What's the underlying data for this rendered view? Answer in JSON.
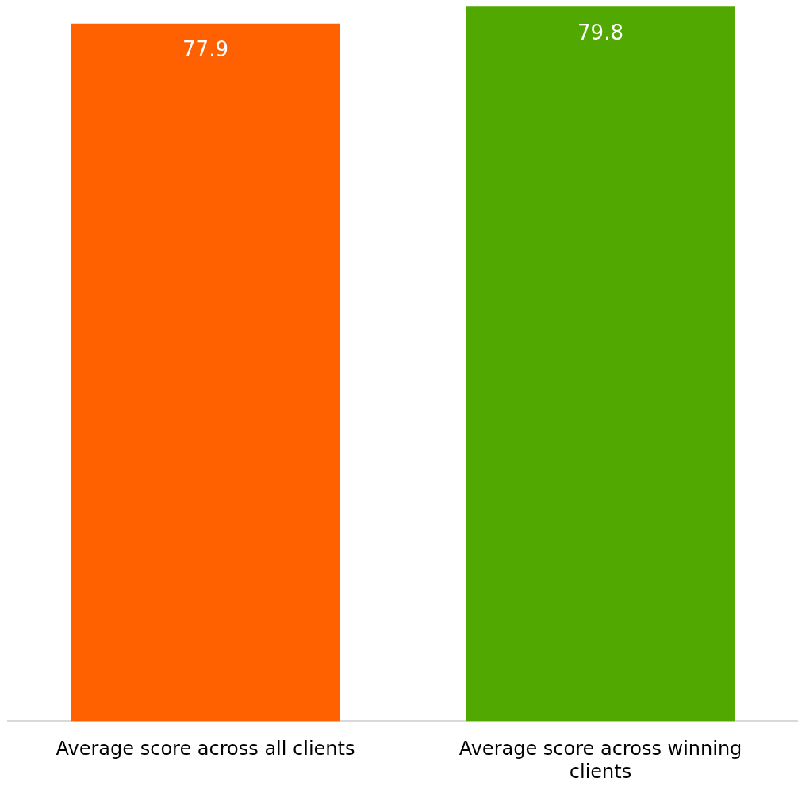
{
  "chart_data": {
    "type": "bar",
    "categories": [
      "Average score across all clients",
      "Average score across winning clients"
    ],
    "values": [
      77.9,
      79.8
    ],
    "colors": [
      "#ff6000",
      "#51a800"
    ],
    "tick_labels": "x",
    "grid": false,
    "legend": false,
    "data_labels": true
  }
}
